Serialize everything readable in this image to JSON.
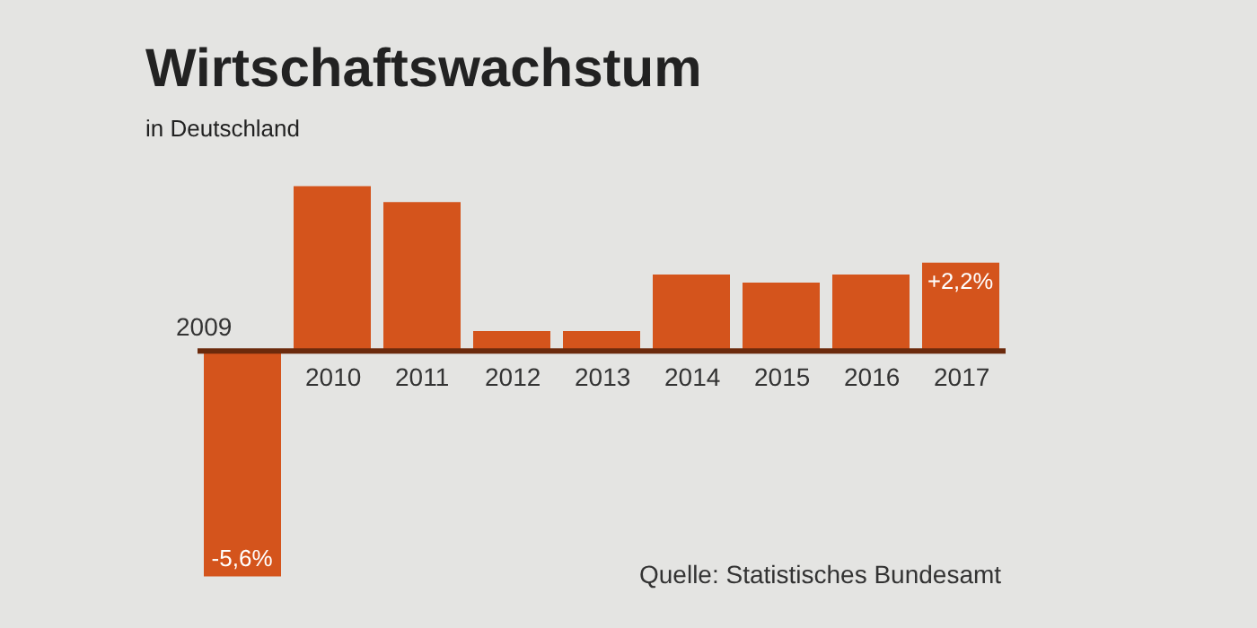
{
  "chart_data": {
    "type": "bar",
    "title": "Wirtschaftswachstum",
    "subtitle": "in Deutschland",
    "categories": [
      "2009",
      "2010",
      "2011",
      "2012",
      "2013",
      "2014",
      "2015",
      "2016",
      "2017"
    ],
    "values": [
      -5.6,
      4.1,
      3.7,
      0.5,
      0.5,
      1.9,
      1.7,
      1.9,
      2.2
    ],
    "value_labels": [
      "-5,6%",
      null,
      null,
      null,
      null,
      null,
      null,
      null,
      "+2,2%"
    ],
    "color": "#d4541c",
    "annotations": [
      "Quelle: Statistisches Bundesamt"
    ]
  }
}
